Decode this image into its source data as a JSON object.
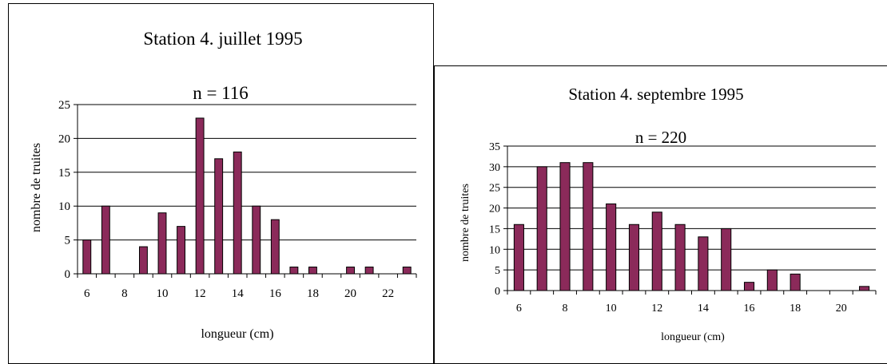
{
  "colors": {
    "bar_fill": "#8b2a5a",
    "bar_stroke": "#000000",
    "grid": "#000000"
  },
  "chart_data": [
    {
      "type": "bar",
      "title": "Station 4.  juillet 1995",
      "subtitle": "n = 116",
      "xlabel": "longueur  (cm)",
      "ylabel": "nombre de truites",
      "ylim": [
        0,
        25
      ],
      "yticks": [
        0,
        5,
        10,
        15,
        20,
        25
      ],
      "xticks": [
        6,
        8,
        10,
        12,
        14,
        16,
        18,
        20,
        22
      ],
      "grid": true,
      "categories": [
        6,
        7,
        8,
        9,
        10,
        11,
        12,
        13,
        14,
        15,
        16,
        17,
        18,
        19,
        20,
        21,
        22,
        23
      ],
      "values": [
        5,
        10,
        0,
        4,
        9,
        7,
        23,
        17,
        18,
        10,
        8,
        1,
        1,
        0,
        1,
        1,
        0,
        1
      ]
    },
    {
      "type": "bar",
      "title": "Station 4. septembre 1995",
      "subtitle": "n = 220",
      "xlabel": "longueur  (cm)",
      "ylabel": "nombre de truites",
      "ylim": [
        0,
        35
      ],
      "yticks": [
        0,
        5,
        10,
        15,
        20,
        25,
        30,
        35
      ],
      "xticks": [
        6,
        8,
        10,
        12,
        14,
        16,
        18,
        20
      ],
      "grid": true,
      "categories": [
        6,
        7,
        8,
        9,
        10,
        11,
        12,
        13,
        14,
        15,
        16,
        17,
        18,
        19,
        20,
        21
      ],
      "values": [
        16,
        30,
        31,
        31,
        21,
        16,
        19,
        16,
        13,
        15,
        2,
        5,
        4,
        0,
        0,
        1
      ]
    }
  ]
}
